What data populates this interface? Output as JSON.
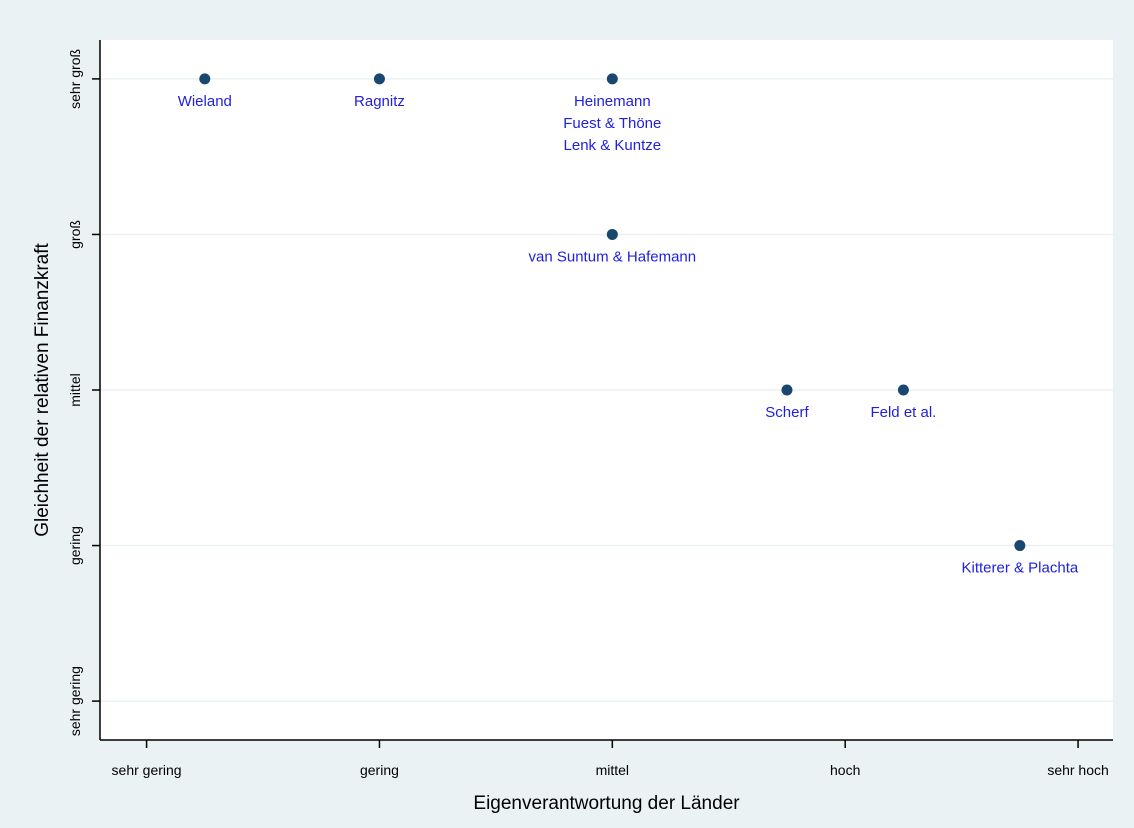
{
  "chart_data": {
    "type": "scatter",
    "title": "",
    "xlabel": "Eigenverantwortung der Länder",
    "ylabel": "Gleichheit der relativen Finanzkraft",
    "xlim": [
      0.8,
      5.15
    ],
    "ylim": [
      0.75,
      5.25
    ],
    "x_ticks": [
      1,
      2,
      3,
      4,
      5
    ],
    "x_tick_labels": [
      "sehr gering",
      "gering",
      "mittel",
      "hoch",
      "sehr hoch"
    ],
    "y_ticks": [
      1,
      2,
      3,
      4,
      5
    ],
    "y_tick_labels": [
      "sehr gering",
      "gering",
      "mittel",
      "groß",
      "sehr groß"
    ],
    "grid": "horizontal",
    "legend": "none",
    "points": [
      {
        "x": 1.25,
        "y": 5,
        "labels": [
          "Wieland"
        ]
      },
      {
        "x": 2,
        "y": 5,
        "labels": [
          "Ragnitz"
        ]
      },
      {
        "x": 3,
        "y": 5,
        "labels": [
          "Heinemann",
          "Fuest & Thöne",
          "Lenk & Kuntze"
        ]
      },
      {
        "x": 3,
        "y": 4,
        "labels": [
          "van Suntum & Hafemann"
        ]
      },
      {
        "x": 3.75,
        "y": 3,
        "labels": [
          "Scherf"
        ]
      },
      {
        "x": 4.25,
        "y": 3,
        "labels": [
          "Feld et al."
        ]
      },
      {
        "x": 4.75,
        "y": 2,
        "labels": [
          "Kitterer & Plachta"
        ]
      }
    ]
  },
  "colors": {
    "outer_background": "#eaf2f3",
    "plot_background": "#ffffff",
    "gridline": "#eaf2f3",
    "axis": "#000000",
    "marker": "#1a476f",
    "point_label": "#2020e0"
  }
}
